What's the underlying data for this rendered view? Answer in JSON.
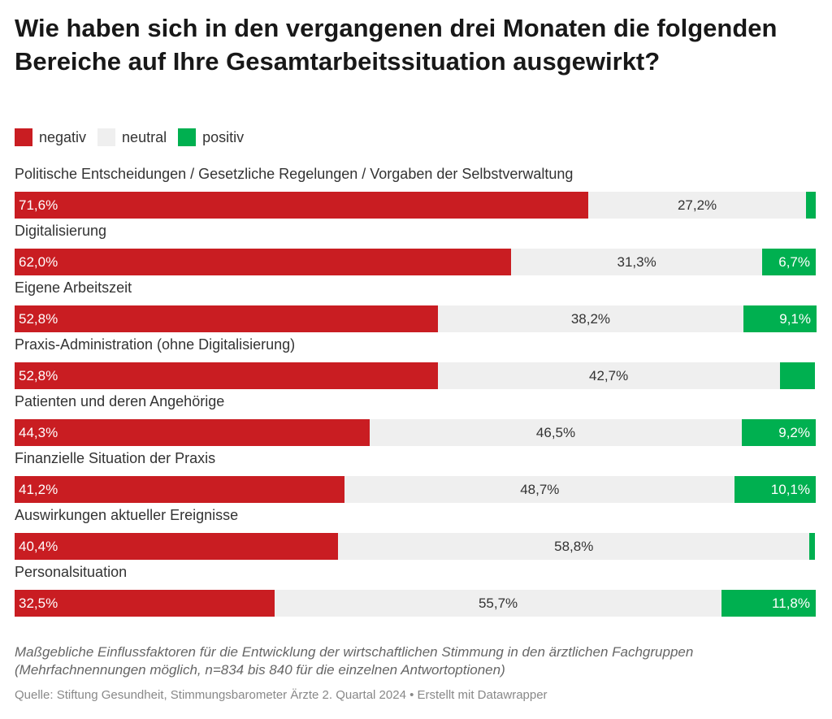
{
  "title": "Wie haben sich in den vergangenen drei Monaten die folgenden Bereiche auf Ihre Gesamtarbeitssituation ausgewirkt?",
  "legend": [
    {
      "label": "negativ",
      "color": "#c91d22"
    },
    {
      "label": "neutral",
      "color": "#efefef"
    },
    {
      "label": "positiv",
      "color": "#00b050"
    }
  ],
  "chart_data": {
    "type": "bar",
    "orientation": "horizontal",
    "stacked": true,
    "xlim": [
      0,
      100
    ],
    "categories": [
      "Politische Entscheidungen / Gesetzliche Regelungen / Vorgaben der Selbstverwaltung",
      "Digitalisierung",
      "Eigene Arbeitszeit",
      "Praxis-Administration (ohne Digitalisierung)",
      "Patienten und deren Angehörige",
      "Finanzielle Situation der Praxis",
      "Auswirkungen aktueller Ereignisse",
      "Personalsituation"
    ],
    "series": [
      {
        "name": "negativ",
        "color": "#c91d22",
        "values": [
          71.6,
          62.0,
          52.8,
          52.8,
          44.3,
          41.2,
          40.4,
          32.5
        ],
        "labels": [
          "71,6%",
          "62,0%",
          "52,8%",
          "52,8%",
          "44,3%",
          "41,2%",
          "40,4%",
          "32,5%"
        ]
      },
      {
        "name": "neutral",
        "color": "#efefef",
        "values": [
          27.2,
          31.3,
          38.2,
          42.7,
          46.5,
          48.7,
          58.8,
          55.7
        ],
        "labels": [
          "27,2%",
          "31,3%",
          "38,2%",
          "42,7%",
          "46,5%",
          "48,7%",
          "58,8%",
          "55,7%"
        ]
      },
      {
        "name": "positiv",
        "color": "#00b050",
        "values": [
          1.2,
          6.7,
          9.1,
          4.4,
          9.2,
          10.1,
          0.7,
          11.8
        ],
        "labels": [
          "",
          "6,7%",
          "9,1%",
          "",
          "9,2%",
          "10,1%",
          "",
          "11,8%"
        ]
      }
    ]
  },
  "notes": "Maßgebliche Einflussfaktoren für die Entwicklung der wirtschaftlichen Stimmung in den ärztlichen Fachgruppen (Mehrfachnennungen möglich, n=834 bis 840 für die einzelnen Antwortoptionen)",
  "source": "Quelle: Stiftung Gesundheit, Stimmungsbarometer Ärzte 2. Quartal 2024 • Erstellt mit Datawrapper"
}
